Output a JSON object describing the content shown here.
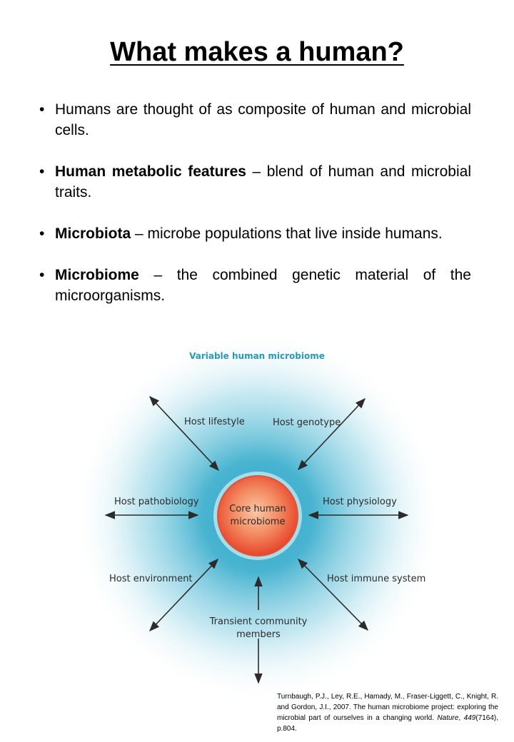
{
  "title": "What makes a human?",
  "bullets": [
    {
      "bold": "",
      "text": "Humans are thought of as composite of human and microbial cells."
    },
    {
      "bold": "Human metabolic features",
      "text": " – blend of human and microbial traits."
    },
    {
      "bold": "Microbiota",
      "text": " – microbe populations that live inside humans."
    },
    {
      "bold": "Microbiome",
      "text": " – the combined genetic material of the microorganisms."
    }
  ],
  "diagram": {
    "outer_label": "Variable human microbiome",
    "core_label_line1": "Core human",
    "core_label_line2": "microbiome",
    "factors": {
      "host_lifestyle": "Host lifestyle",
      "host_genotype": "Host genotype",
      "host_pathobiology": "Host pathobiology",
      "host_physiology": "Host physiology",
      "host_environment": "Host environment",
      "host_immune_system": "Host immune system",
      "transient_line1": "Transient community",
      "transient_line2": "members"
    },
    "colors": {
      "halo": "#2aa7c9",
      "core_center": "#f7b08a",
      "core_edge": "#e8452a",
      "outer_label": "#2a98b8",
      "arrow": "#2b2b2b"
    }
  },
  "citation": {
    "text_before": "Turnbaugh, P.J., Ley, R.E., Hamady, M., Fraser-Liggett, C., Knight, R. and Gordon, J.I., 2007. The human microbiome project: exploring the microbial part of ourselves in a changing world. ",
    "journal": "Nature",
    "volume": "449",
    "text_after": "(7164), p.804."
  }
}
